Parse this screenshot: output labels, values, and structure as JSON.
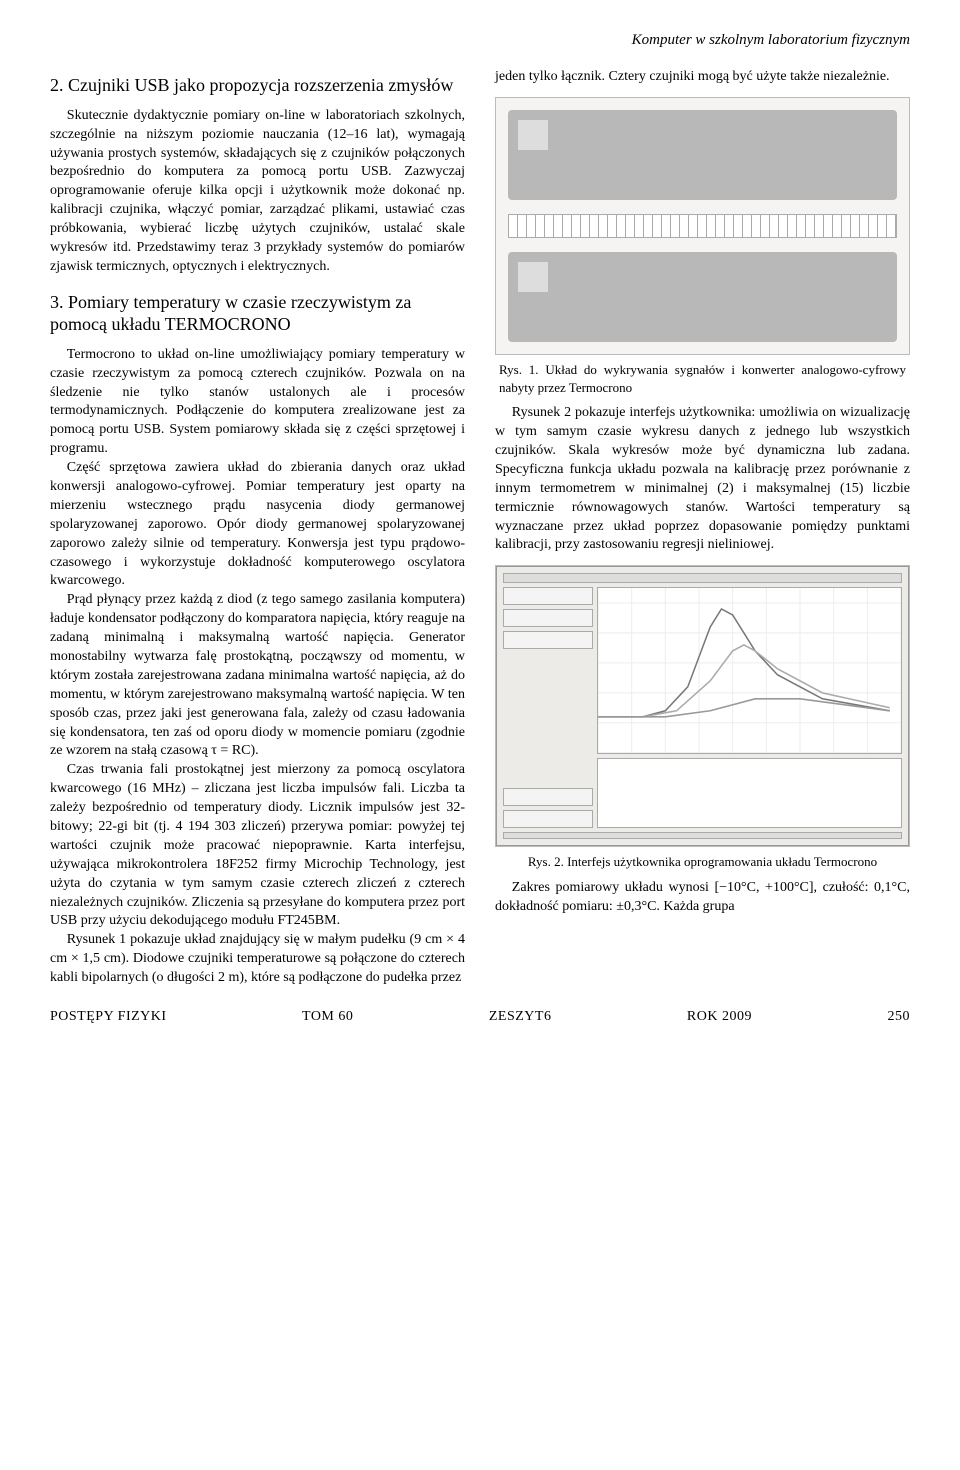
{
  "header": {
    "running_title": "Komputer w szkolnym laboratorium fizycznym"
  },
  "left": {
    "sec2_title": "2. Czujniki USB jako propozycja rozszerzenia zmysłów",
    "sec2_p1": "Skutecznie dydaktycznie pomiary on-line w laboratoriach szkolnych, szczególnie na niższym poziomie nauczania (12–16 lat), wymagają używania prostych systemów, składających się z czujników połączonych bezpośrednio do komputera za pomocą portu USB. Zazwyczaj oprogramowanie oferuje kilka opcji i użytkownik może dokonać np. kalibracji czujnika, włączyć pomiar, zarządzać plikami, ustawiać czas próbkowania, wybierać liczbę użytych czujników, ustalać skale wykresów itd. Przedstawimy teraz 3 przykłady systemów do pomiarów zjawisk termicznych, optycznych i elektrycznych.",
    "sec3_title": "3. Pomiary temperatury w czasie rzeczywistym za pomocą układu TERMOCRONO",
    "sec3_p1": "Termocrono to układ on-line umożliwiający pomiary temperatury w czasie rzeczywistym za pomocą czterech czujników. Pozwala on na śledzenie nie tylko stanów ustalonych ale i procesów termodynamicznych. Podłączenie do komputera zrealizowane jest za pomocą portu USB. System pomiarowy składa się z części sprzętowej i programu.",
    "sec3_p2": "Część sprzętowa zawiera układ do zbierania danych oraz układ konwersji analogowo-cyfrowej. Pomiar temperatury jest oparty na mierzeniu wstecznego prądu nasycenia diody germanowej spolaryzowanej zaporowo. Opór diody germanowej spolaryzowanej zaporowo zależy silnie od temperatury. Konwersja jest typu prądowo-czasowego i wykorzystuje dokładność komputerowego oscylatora kwarcowego.",
    "sec3_p3": "Prąd płynący przez każdą z diod (z tego samego zasilania komputera) ładuje kondensator podłączony do komparatora napięcia, który reaguje na zadaną minimalną i maksymalną wartość napięcia. Generator monostabilny wytwarza falę prostokątną, począwszy od momentu, w którym została zarejestrowana zadana minimalna wartość napięcia, aż do momentu, w którym zarejestrowano maksymalną wartość napięcia. W ten sposób czas, przez jaki jest generowana fala, zależy od czasu ładowania się kondensatora, ten zaś od oporu diody w momencie pomiaru (zgodnie ze wzorem na stałą czasową τ = RC).",
    "sec3_p4": "Czas trwania fali prostokątnej jest mierzony za pomocą oscylatora kwarcowego (16 MHz) – zliczana jest liczba impulsów fali. Liczba ta zależy bezpośrednio od temperatury diody. Licznik impulsów jest 32-bitowy; 22-gi bit (tj. 4 194 303 zliczeń) przerywa pomiar: powyżej tej wartości czujnik może pracować niepoprawnie. Karta interfejsu, używająca mikrokontrolera 18F252 firmy Microchip Technology, jest użyta do czytania w tym samym czasie czterech zliczeń z czterech niezależnych czujników. Zliczenia są przesyłane do komputera przez port USB przy użyciu dekodującego modułu FT245BM.",
    "sec3_p5": "Rysunek 1 pokazuje układ znajdujący się w małym pudełku (9 cm × 4 cm × 1,5 cm). Diodowe czujniki temperaturowe są połączone do czterech kabli bipolarnych (o długości 2 m), które są podłączone do pudełka przez"
  },
  "right": {
    "p_top": "jeden tylko łącznik. Cztery czujniki mogą być użyte także niezależnie.",
    "fig1_caption": "Rys. 1. Układ do wykrywania sygnałów i konwerter analogowo-cyfrowy nabyty przez Termocrono",
    "p_mid": "Rysunek 2 pokazuje interfejs użytkownika: umożliwia on wizualizację w tym samym czasie wykresu danych z jednego lub wszystkich czujników. Skala wykresów może być dynamiczna lub zadana. Specyficzna funkcja układu pozwala na kalibrację przez porównanie z innym termometrem w minimalnej (2) i maksymalnej (15) liczbie termicznie równowagowych stanów. Wartości temperatury są wyznaczane przez układ poprzez dopasowanie pomiędzy punktami kalibracji, przy zastosowaniu regresji nieliniowej.",
    "fig2_caption": "Rys. 2. Interfejs użytkownika oprogramowania układu Termocrono",
    "p_bot": "Zakres pomiarowy układu wynosi [−10°C, +100°C], czułość: 0,1°C, dokładność pomiaru: ±0,3°C. Każda grupa",
    "fig2_plot": {
      "type": "line",
      "xlim": [
        0,
        135
      ],
      "ylim": [
        10,
        65
      ],
      "series": [
        {
          "color": "#777",
          "points": [
            [
              0,
              22
            ],
            [
              20,
              22
            ],
            [
              30,
              24
            ],
            [
              40,
              32
            ],
            [
              50,
              52
            ],
            [
              55,
              58
            ],
            [
              60,
              56
            ],
            [
              70,
              44
            ],
            [
              80,
              36
            ],
            [
              100,
              28
            ],
            [
              130,
              24
            ]
          ]
        },
        {
          "color": "#aaa",
          "points": [
            [
              0,
              22
            ],
            [
              20,
              22
            ],
            [
              35,
              24
            ],
            [
              50,
              34
            ],
            [
              60,
              44
            ],
            [
              65,
              46
            ],
            [
              70,
              44
            ],
            [
              80,
              38
            ],
            [
              100,
              30
            ],
            [
              130,
              25
            ]
          ]
        },
        {
          "color": "#999",
          "points": [
            [
              0,
              22
            ],
            [
              30,
              22
            ],
            [
              50,
              24
            ],
            [
              70,
              28
            ],
            [
              90,
              28
            ],
            [
              110,
              26
            ],
            [
              130,
              24
            ]
          ]
        }
      ]
    }
  },
  "footer": {
    "journal": "POSTĘPY FIZYKI",
    "tom": "TOM 60",
    "zeszyt": "ZESZYT6",
    "rok": "ROK 2009",
    "page": "250"
  }
}
